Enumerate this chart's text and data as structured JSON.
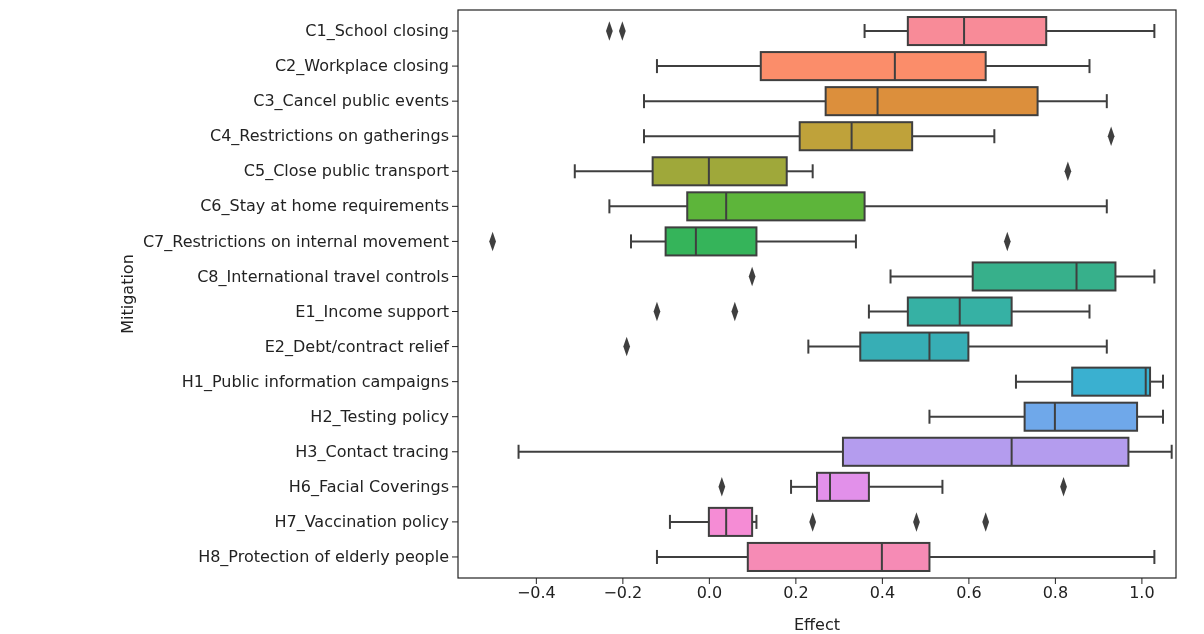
{
  "chart_data": {
    "type": "box",
    "orientation": "horizontal",
    "xlabel": "Effect",
    "ylabel": "Mitigation",
    "marker": "diamond",
    "categories": [
      "C1_School closing",
      "C2_Workplace closing",
      "C3_Cancel public events",
      "C4_Restrictions on gatherings",
      "C5_Close public transport",
      "C6_Stay at home requirements",
      "C7_Restrictions on internal movement",
      "C8_International travel controls",
      "E1_Income support",
      "E2_Debt/contract relief",
      "H1_Public information campaigns",
      "H2_Testing policy",
      "H3_Contact tracing",
      "H6_Facial Coverings",
      "H7_Vaccination policy",
      "H8_Protection of elderly people"
    ],
    "colors": [
      "#f88b98",
      "#fb8d6a",
      "#dc8f3c",
      "#bfa23a",
      "#9fa83a",
      "#5db53a",
      "#35b45a",
      "#37b08b",
      "#36b1a4",
      "#37aeb5",
      "#3ab0d0",
      "#6fa8ea",
      "#b49cee",
      "#e290ea",
      "#f58cd5",
      "#f68bb5"
    ],
    "boxes": [
      {
        "low": 0.36,
        "q1": 0.46,
        "median": 0.59,
        "q3": 0.78,
        "high": 1.03,
        "outliers": [
          -0.23,
          -0.2
        ]
      },
      {
        "low": -0.12,
        "q1": 0.12,
        "median": 0.43,
        "q3": 0.64,
        "high": 0.88
      },
      {
        "low": -0.15,
        "q1": 0.27,
        "median": 0.39,
        "q3": 0.76,
        "high": 0.92
      },
      {
        "low": -0.15,
        "q1": 0.21,
        "median": 0.33,
        "q3": 0.47,
        "high": 0.66,
        "outliers": [
          0.93
        ]
      },
      {
        "low": -0.31,
        "q1": -0.13,
        "median": 0.0,
        "q3": 0.18,
        "high": 0.24,
        "outliers": [
          0.83
        ]
      },
      {
        "low": -0.23,
        "q1": -0.05,
        "median": 0.04,
        "q3": 0.36,
        "high": 0.92
      },
      {
        "low": -0.18,
        "q1": -0.1,
        "median": -0.03,
        "q3": 0.11,
        "high": 0.34,
        "outliers": [
          -0.5,
          0.69
        ]
      },
      {
        "low": 0.42,
        "q1": 0.61,
        "median": 0.85,
        "q3": 0.94,
        "high": 1.03,
        "outliers": [
          0.1
        ]
      },
      {
        "low": 0.37,
        "q1": 0.46,
        "median": 0.58,
        "q3": 0.7,
        "high": 0.88,
        "outliers": [
          -0.12,
          0.06
        ]
      },
      {
        "low": 0.23,
        "q1": 0.35,
        "median": 0.51,
        "q3": 0.6,
        "high": 0.92,
        "outliers": [
          -0.19
        ]
      },
      {
        "low": 0.71,
        "q1": 0.84,
        "median": 1.01,
        "q3": 1.02,
        "high": 1.05
      },
      {
        "low": 0.51,
        "q1": 0.73,
        "median": 0.8,
        "q3": 0.99,
        "high": 1.05
      },
      {
        "low": -0.44,
        "q1": 0.31,
        "median": 0.7,
        "q3": 0.97,
        "high": 1.07
      },
      {
        "low": 0.19,
        "q1": 0.25,
        "median": 0.28,
        "q3": 0.37,
        "high": 0.54,
        "outliers": [
          0.03,
          0.82
        ]
      },
      {
        "low": -0.09,
        "q1": 0.0,
        "median": 0.04,
        "q3": 0.1,
        "high": 0.11,
        "outliers": [
          0.24,
          0.48,
          0.64
        ]
      },
      {
        "low": -0.12,
        "q1": 0.09,
        "median": 0.4,
        "q3": 0.51,
        "high": 1.03
      }
    ],
    "xlim": [
      -0.58,
      1.08
    ],
    "xticks": [
      {
        "value": -0.4,
        "label": "−0.4"
      },
      {
        "value": -0.2,
        "label": "−0.2"
      },
      {
        "value": 0,
        "label": "0.0"
      },
      {
        "value": 0.2,
        "label": "0.2"
      },
      {
        "value": 0.4,
        "label": "0.4"
      },
      {
        "value": 0.6,
        "label": "0.6"
      },
      {
        "value": 0.8,
        "label": "0.8"
      },
      {
        "value": 1.0,
        "label": "1.0"
      }
    ]
  }
}
